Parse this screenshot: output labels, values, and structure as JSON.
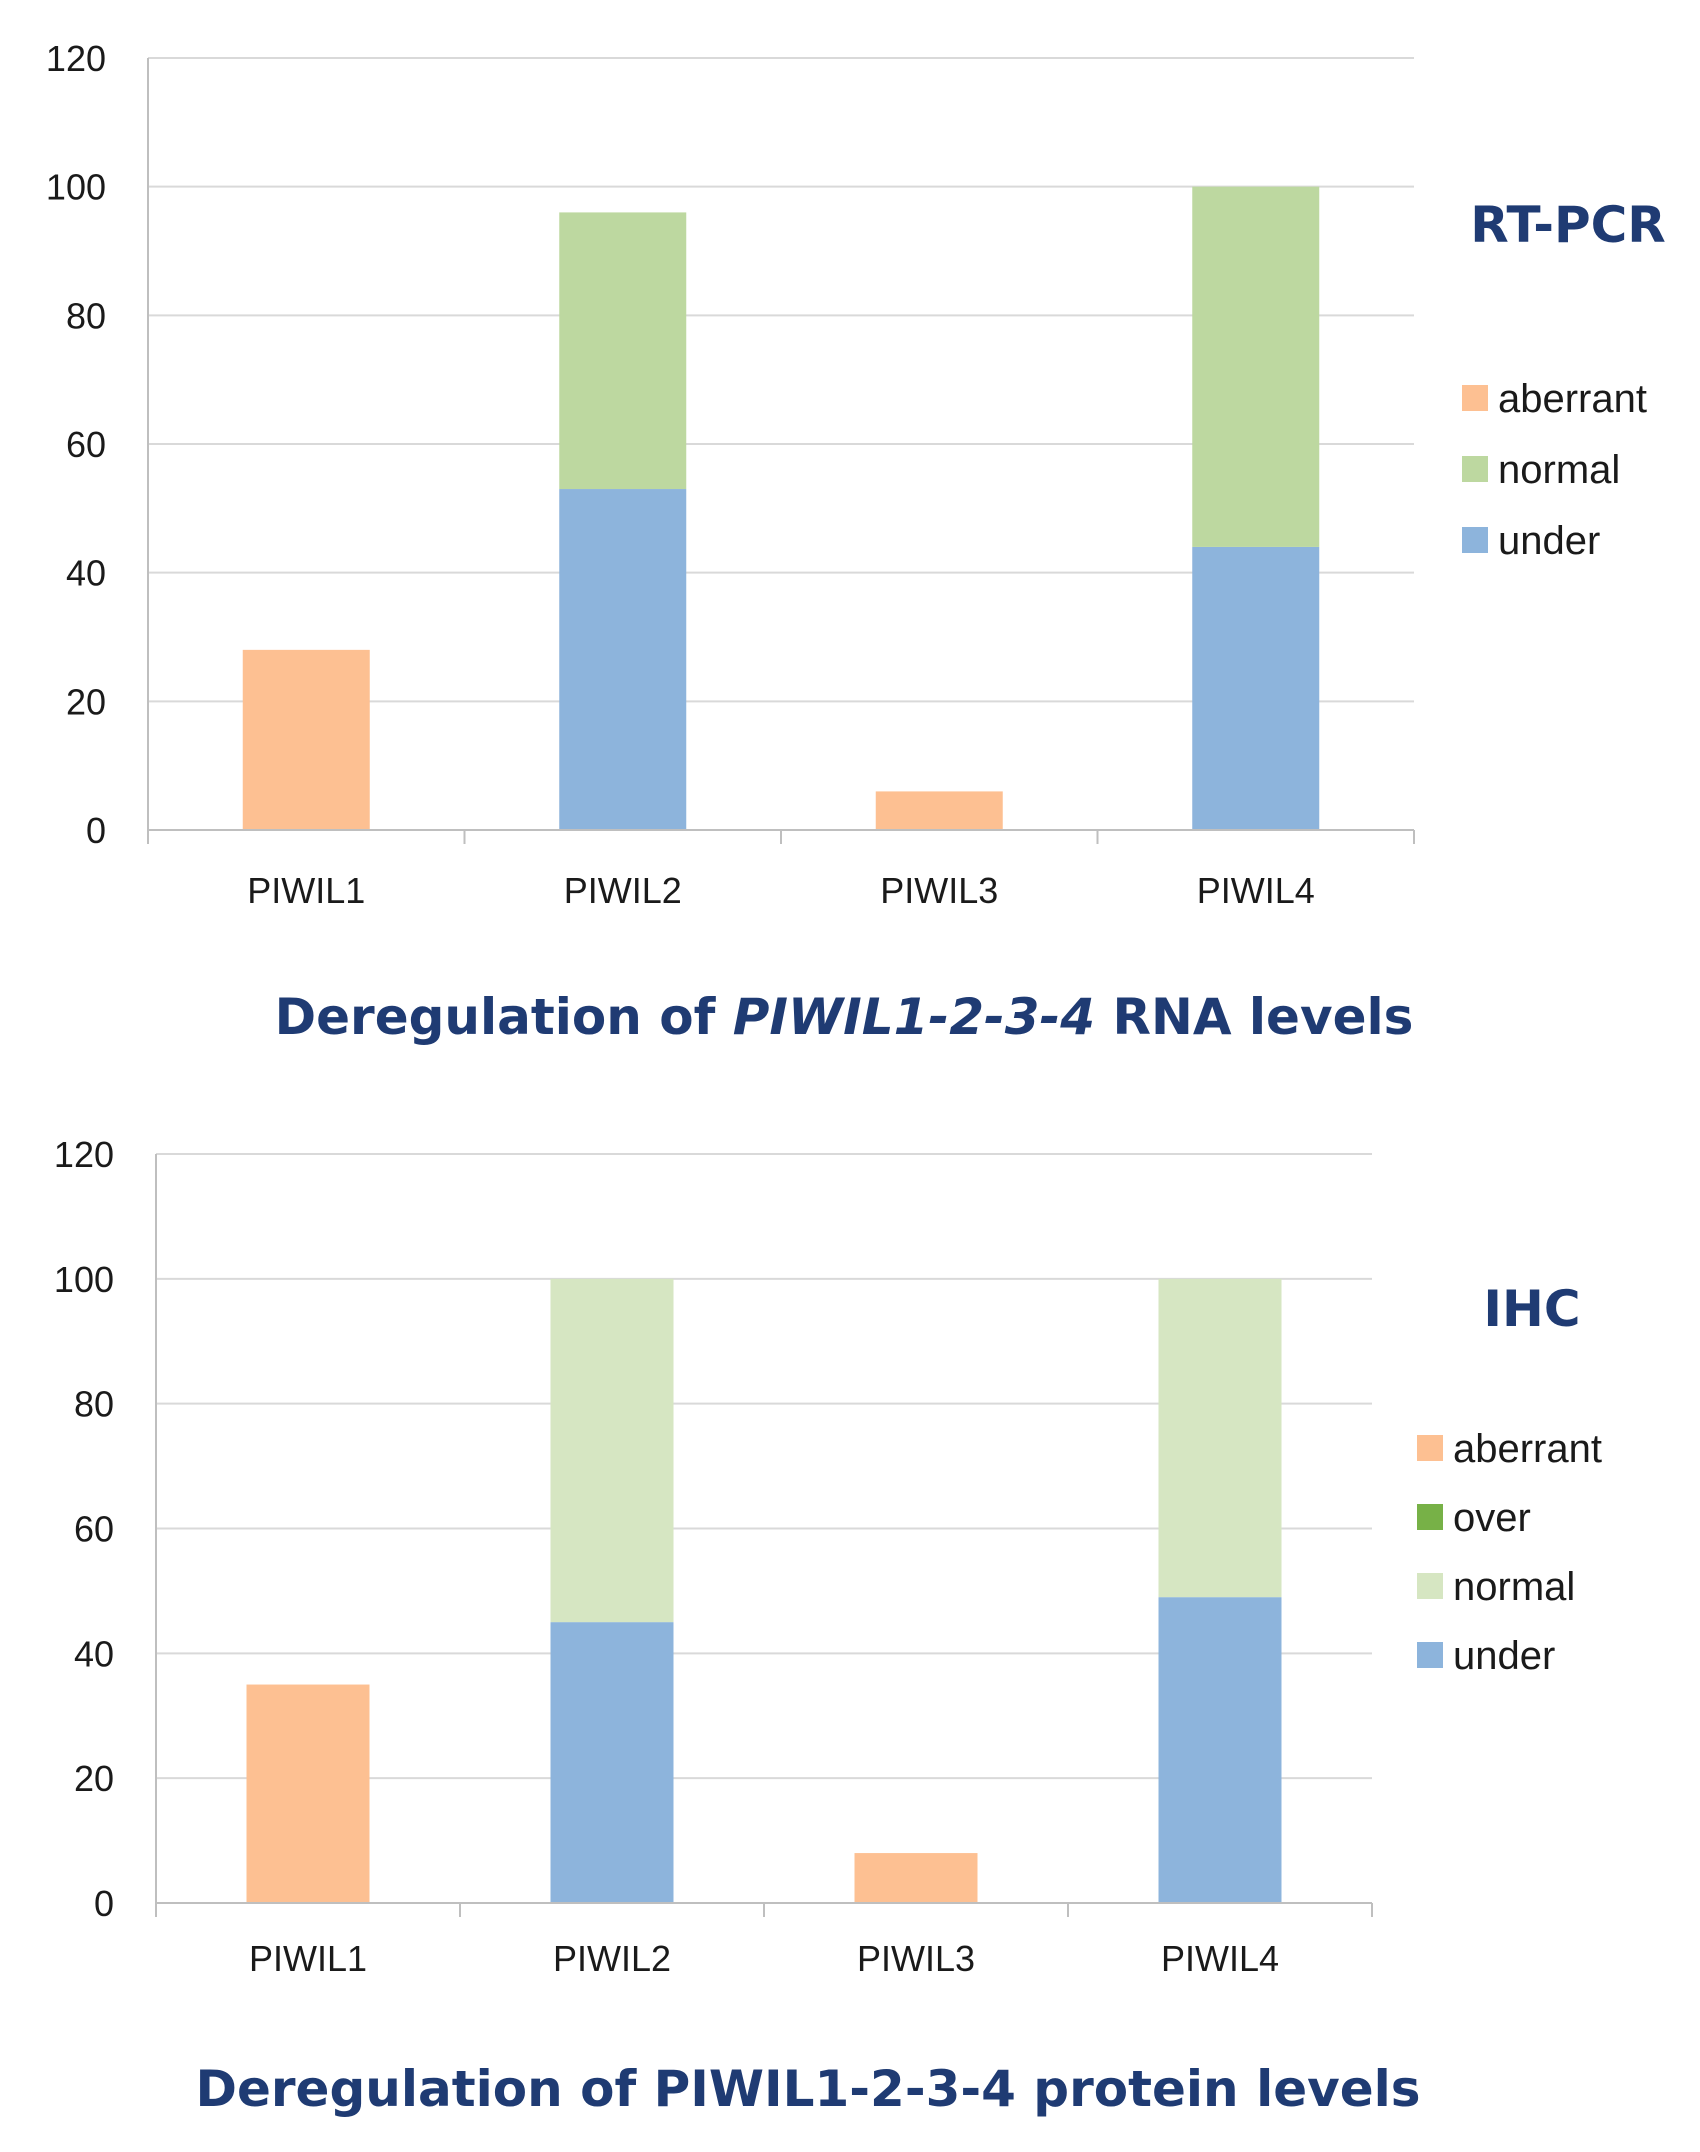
{
  "chart_data": [
    {
      "type": "bar",
      "stacked": true,
      "label": "RT-PCR",
      "title": "Deregulation of PIWIL1-2-3-4 RNA levels",
      "title_parts": {
        "prefix": "Deregulation of ",
        "italic": "PIWIL1-2-3-4",
        "suffix": " RNA levels"
      },
      "categories": [
        "PIWIL1",
        "PIWIL2",
        "PIWIL3",
        "PIWIL4"
      ],
      "series": [
        {
          "name": "under",
          "color": "#8db4dc",
          "values": [
            0,
            53,
            0,
            44
          ]
        },
        {
          "name": "normal",
          "color": "#bdd8a0",
          "values": [
            0,
            43,
            0,
            56
          ]
        },
        {
          "name": "aberrant",
          "color": "#fdc092",
          "values": [
            28,
            0,
            6,
            0
          ]
        }
      ],
      "legend_order": [
        "aberrant",
        "normal",
        "under"
      ],
      "ylim": [
        0,
        120
      ],
      "yticks": [
        "0",
        "20",
        "40",
        "60",
        "80",
        "100",
        "120"
      ],
      "xlabel": "",
      "ylabel": "",
      "grid": true,
      "legend_position": "right"
    },
    {
      "type": "bar",
      "stacked": true,
      "label": "IHC",
      "title": "Deregulation of PIWIL1-2-3-4 protein levels",
      "categories": [
        "PIWIL1",
        "PIWIL2",
        "PIWIL3",
        "PIWIL4"
      ],
      "series": [
        {
          "name": "under",
          "color": "#8db4dc",
          "values": [
            0,
            45,
            0,
            49
          ]
        },
        {
          "name": "normal",
          "color": "#d6e6c2",
          "values": [
            0,
            55,
            0,
            51
          ]
        },
        {
          "name": "over",
          "color": "#77b147",
          "values": [
            0,
            0,
            0,
            0
          ]
        },
        {
          "name": "aberrant",
          "color": "#fdc092",
          "values": [
            35,
            0,
            8,
            0
          ]
        }
      ],
      "legend_order": [
        "aberrant",
        "over",
        "normal",
        "under"
      ],
      "ylim": [
        0,
        120
      ],
      "yticks": [
        "0",
        "20",
        "40",
        "60",
        "80",
        "100",
        "120"
      ],
      "xlabel": "",
      "ylabel": "",
      "grid": true,
      "legend_position": "right"
    }
  ]
}
